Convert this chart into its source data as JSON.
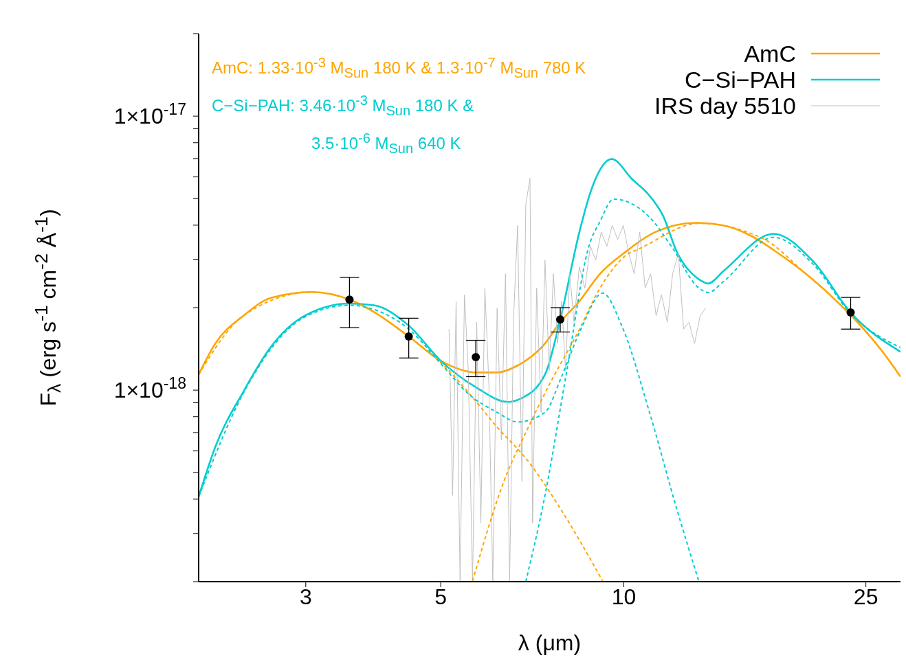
{
  "chart_data": {
    "type": "line",
    "xlabel": "λ (μm)",
    "ylabel": "F$_{λ}$ (erg s$^{-1}$ cm$^{-2}$ Å$^{-1}$)",
    "annotations": [
      "AmC: 1.33·10$^{-3}$ M$_{Sun}$ 180 K & 1.3·10$^{-7}$ M$_{Sun}$ 780 K",
      "C−Si−PAH: 3.46·10$^{-3}$ M$_{Sun}$ 180 K &",
      "3.5·10$^{-6}$ M$_{Sun}$ 640 K"
    ],
    "log": "xy",
    "legend": "top right",
    "marker": "none",
    "xlim": [
      2,
      28.5
    ],
    "xticks": [
      3,
      5,
      10,
      25
    ],
    "ylim": [
      2e-19,
      2e-17
    ],
    "yticks": [
      {
        "value": 2e-19,
        "label": null
      },
      {
        "value": 3e-19,
        "label": null
      },
      {
        "value": 4e-19,
        "label": null
      },
      {
        "value": 5e-19,
        "label": null
      },
      {
        "value": 6e-19,
        "label": null
      },
      {
        "value": 7e-19,
        "label": null
      },
      {
        "value": 8e-19,
        "label": null
      },
      {
        "value": 9e-19,
        "label": null
      },
      {
        "value": 1e-18,
        "label": "1×10$^{-18}$"
      },
      {
        "value": 2e-18,
        "label": null
      },
      {
        "value": 3e-18,
        "label": null
      },
      {
        "value": 4e-18,
        "label": null
      },
      {
        "value": 5e-18,
        "label": null
      },
      {
        "value": 6e-18,
        "label": null
      },
      {
        "value": 7e-18,
        "label": null
      },
      {
        "value": 8e-18,
        "label": null
      },
      {
        "value": 9e-18,
        "label": null
      },
      {
        "value": 1e-17,
        "label": "1×10$^{-17}$"
      },
      {
        "value": 2e-17,
        "label": null
      }
    ],
    "series": [
      {
        "name": "AmC",
        "color": "#ffa500",
        "line_style": "solid",
        "x": [
          2.0,
          2.13,
          2.37,
          2.63,
          3.07,
          3.54,
          3.88,
          4.43,
          5.0,
          5.73,
          6.19,
          6.69,
          7.42,
          7.86,
          8.45,
          9.14,
          10,
          11.25,
          13.14,
          14.58,
          16.17,
          17.94,
          19.91,
          22.09,
          24.5,
          26.5,
          28.5
        ],
        "values": [
          1.14e-18,
          1.48e-18,
          1.87e-18,
          2.17e-18,
          2.28e-18,
          2.14e-18,
          1.93e-18,
          1.57e-18,
          1.28e-18,
          1.16e-18,
          1.16e-18,
          1.23e-18,
          1.48e-18,
          1.77e-18,
          2.11e-18,
          2.66e-18,
          3.16e-18,
          3.77e-18,
          4.08e-18,
          3.99e-18,
          3.66e-18,
          3.16e-18,
          2.66e-18,
          2.17e-18,
          1.72e-18,
          1.4e-18,
          1.12e-18
        ]
      },
      {
        "name": "C−Si−PAH",
        "color": "#00cdd0",
        "line_style": "solid",
        "x": [
          2.0,
          2.13,
          2.37,
          2.63,
          2.99,
          3.54,
          3.88,
          4.43,
          5.0,
          5.73,
          6.44,
          6.78,
          7.42,
          7.86,
          8.45,
          8.83,
          9.55,
          10.34,
          10.95,
          11.6,
          12.22,
          13.28,
          13.77,
          14.58,
          17.62,
          20.48,
          23.6,
          28.5
        ],
        "values": [
          4.08e-19,
          6.21e-19,
          9.89e-19,
          1.44e-18,
          1.87e-18,
          2.07e-18,
          2.04e-18,
          1.72e-18,
          1.28e-18,
          1.02e-18,
          9.06e-19,
          9.33e-19,
          1.14e-18,
          1.81e-18,
          3.77e-18,
          5.34e-18,
          6.97e-18,
          5.86e-18,
          5.21e-18,
          4.33e-18,
          3.2e-18,
          2.54e-18,
          2.45e-18,
          2.72e-18,
          3.72e-18,
          2.95e-18,
          1.92e-18,
          1.38e-18
        ]
      },
      {
        "name": "IRS day 5510",
        "color": "#c0c0c0",
        "line_style": "solid",
        "x": [
          5.16,
          5.23,
          5.3,
          5.38,
          5.47,
          5.55,
          5.64,
          5.73,
          5.82,
          5.91,
          6.0,
          6.09,
          6.19,
          6.29,
          6.39,
          6.49,
          6.59,
          6.69,
          6.8,
          6.9,
          7.01,
          7.08,
          7.19,
          7.31,
          7.42,
          7.54,
          7.66,
          7.78,
          7.9,
          8.02,
          8.15,
          8.28,
          8.45,
          8.63,
          8.81,
          8.99,
          9.18,
          9.38,
          9.57,
          9.77,
          9.98,
          10.19,
          10.4,
          10.62,
          10.84,
          11.07,
          11.3,
          11.53,
          11.79,
          12.03,
          12.29,
          12.54,
          12.8,
          13.07,
          13.35,
          13.63
        ],
        "values": [
          1.67e-18,
          4.13e-19,
          2.11e-18,
          2e-19,
          2.23e-18,
          1.18e-18,
          2e-19,
          1.77e-18,
          3.27e-19,
          2.36e-18,
          1.05e-18,
          2e-19,
          1.99e-18,
          6.58e-19,
          2.66e-18,
          2e-19,
          1.87e-18,
          3.99e-18,
          4.64e-19,
          4.75e-18,
          5.93e-18,
          3.27e-19,
          2.36e-18,
          8.3e-19,
          2.98e-18,
          1.18e-18,
          2.66e-18,
          1.48e-18,
          2.11e-18,
          1.18e-18,
          2.66e-18,
          1.77e-18,
          2.82e-18,
          2.36e-18,
          3.35e-18,
          2.98e-18,
          3.77e-18,
          3.35e-18,
          3.99e-18,
          3.55e-18,
          3.99e-18,
          3.16e-18,
          2.66e-18,
          3.77e-18,
          2.36e-18,
          2.66e-18,
          1.87e-18,
          2.23e-18,
          1.77e-18,
          2.66e-18,
          3.16e-18,
          1.67e-18,
          1.77e-18,
          1.48e-18,
          1.87e-18,
          1.99e-18
        ]
      },
      {
        "color": "#ffa500",
        "line_style": "dashed",
        "x": [
          2.0,
          2.37,
          3.07,
          3.54,
          4.43,
          5.02,
          5.56,
          6.17,
          6.98,
          7.82,
          9.23
        ],
        "values": [
          1.14e-18,
          1.87e-18,
          2.28e-18,
          2.14e-18,
          1.57e-18,
          1.25e-18,
          9.77e-19,
          7.39e-19,
          5.46e-19,
          3.77e-19,
          2.01e-19
        ]
      },
      {
        "color": "#ffa500",
        "line_style": "dashed",
        "x": [
          5.64,
          6.35,
          6.98,
          7.58,
          8.41,
          9.14,
          10.13,
          10.57,
          13.28,
          16.95,
          19.91,
          22.09,
          24.5,
          26.5,
          28.5
        ],
        "values": [
          2.01e-19,
          4.64e-19,
          7.39e-19,
          1.07e-18,
          1.63e-18,
          2.36e-18,
          3.13e-18,
          3.27e-18,
          4.06e-18,
          3.57e-18,
          2.66e-18,
          2.17e-18,
          1.72e-18,
          1.4e-18,
          1.12e-18
        ]
      },
      {
        "color": "#00cdd0",
        "line_style": "dashed",
        "x": [
          6.9,
          7.42,
          8.06,
          8.76,
          9.14,
          9.62,
          11.02,
          11.97,
          13.28,
          13.77,
          14.58,
          17.62,
          20.48,
          23.6,
          28.5
        ],
        "values": [
          2e-19,
          4.13e-19,
          1.18e-18,
          3.35e-18,
          4.13e-18,
          4.98e-18,
          4.28e-18,
          3.35e-18,
          2.36e-18,
          2.27e-18,
          2.49e-18,
          3.61e-18,
          2.88e-18,
          1.9e-18,
          1.43e-18
        ]
      },
      {
        "color": "#00cdd0",
        "line_style": "dashed",
        "x": [
          2.0,
          2.37,
          2.99,
          3.54,
          3.98,
          4.43,
          5.0,
          5.58,
          6.19,
          6.69,
          7.42,
          7.9,
          8.5,
          9.23,
          9.93,
          11.02,
          12.22,
          13.28
        ],
        "values": [
          4.08e-19,
          9.77e-19,
          1.85e-18,
          2.04e-18,
          1.93e-18,
          1.67e-18,
          1.25e-18,
          9.6e-19,
          8.3e-19,
          7.65e-19,
          8.3e-19,
          1.12e-18,
          1.67e-18,
          2.26e-18,
          1.71e-18,
          8.3e-19,
          3.68e-19,
          2.01e-19
        ]
      },
      {
        "type": "scatter",
        "color": "#000000",
        "marker": "circle",
        "x": [
          3.54,
          4.43,
          5.71,
          7.86,
          23.6
        ],
        "values": [
          2.14e-18,
          1.57e-18,
          1.32e-18,
          1.81e-18,
          1.92e-18
        ],
        "errors": [
          [
            1.69e-18,
            2.58e-18
          ],
          [
            1.31e-18,
            1.83e-18
          ],
          [
            1.12e-18,
            1.52e-18
          ],
          [
            1.63e-18,
            2e-18
          ],
          [
            1.67e-18,
            2.18e-18
          ]
        ]
      }
    ]
  }
}
